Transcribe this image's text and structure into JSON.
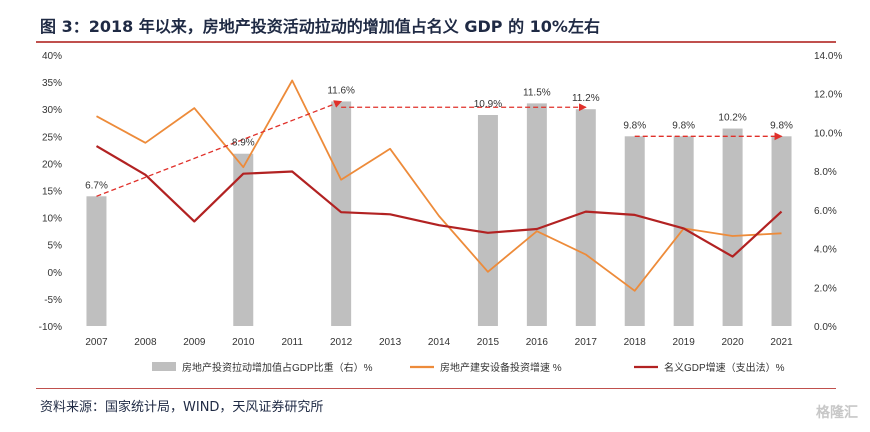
{
  "page": {
    "title": "图 3：2018 年以来，房地产投资活动拉动的增加值占名义 GDP 的 10%左右",
    "source": "资料来源：国家统计局，WIND，天风证券研究所",
    "watermark": "格隆汇"
  },
  "colors": {
    "bar": "#bfbfbf",
    "investment_line": "#ed8b3a",
    "gdp_line": "#b22222",
    "trend_arrow": "#e0302a",
    "axis_text": "#333333",
    "title_rule": "#c0504d"
  },
  "chart_data": {
    "type": "bar",
    "categories": [
      "2007",
      "2008",
      "2009",
      "2010",
      "2011",
      "2012",
      "2013",
      "2014",
      "2015",
      "2016",
      "2017",
      "2018",
      "2019",
      "2020",
      "2021"
    ],
    "left_axis": {
      "min": -10,
      "max": 40,
      "step": 5,
      "unit": "%",
      "ticks": [
        "-10%",
        "-5%",
        "0%",
        "5%",
        "10%",
        "15%",
        "20%",
        "25%",
        "30%",
        "35%",
        "40%"
      ]
    },
    "right_axis": {
      "min": 0,
      "max": 14,
      "step": 2,
      "unit": "%",
      "ticks": [
        "0.0%",
        "2.0%",
        "4.0%",
        "6.0%",
        "8.0%",
        "10.0%",
        "12.0%",
        "14.0%"
      ]
    },
    "grid": false,
    "legend_position": "bottom",
    "series": [
      {
        "name": "房地产投资拉动增加值占GDP比重（右）%",
        "kind": "bar",
        "axis": "right",
        "values": [
          6.7,
          null,
          null,
          8.9,
          null,
          11.6,
          null,
          null,
          10.9,
          11.5,
          11.2,
          9.8,
          9.8,
          10.2,
          9.8
        ],
        "labels": [
          "6.7%",
          "",
          "",
          "8.9%",
          "",
          "11.6%",
          "",
          "",
          "10.9%",
          "11.5%",
          "11.2%",
          "9.8%",
          "9.8%",
          "10.2%",
          "9.8%"
        ]
      },
      {
        "name": "房地产建安设备投资增速 %",
        "kind": "line",
        "axis": "left",
        "values": [
          28.7,
          23.8,
          30.2,
          19.3,
          35.3,
          17.0,
          22.7,
          10.3,
          0.0,
          7.5,
          3.2,
          -3.5,
          8.0,
          6.6,
          7.1
        ]
      },
      {
        "name": "名义GDP增速（支出法）%",
        "kind": "line",
        "axis": "left",
        "values": [
          23.2,
          17.9,
          9.3,
          18.1,
          18.5,
          11.0,
          10.6,
          8.6,
          7.2,
          7.9,
          11.1,
          10.5,
          8.0,
          2.8,
          11.1
        ]
      }
    ],
    "trend_arrows": [
      {
        "from_index": 0,
        "to_index": 5,
        "from_value": 6.7,
        "to_value": 11.6
      },
      {
        "from_index": 5,
        "to_index": 10,
        "from_value": 11.3,
        "to_value": 11.3
      },
      {
        "from_index": 11,
        "to_index": 14,
        "from_value": 9.8,
        "to_value": 9.8
      }
    ]
  }
}
